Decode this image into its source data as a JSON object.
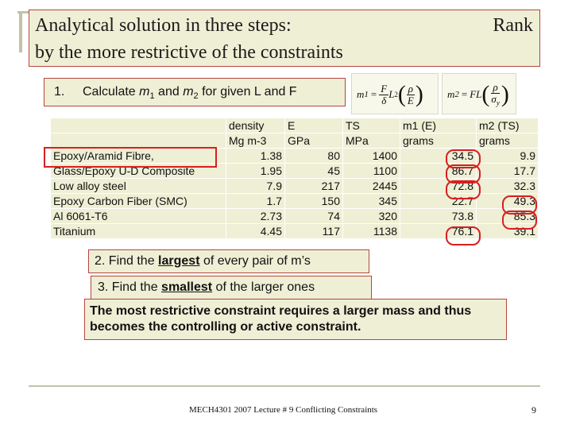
{
  "title": {
    "line1": "Analytical solution in three steps:",
    "line2": "by the more restrictive of the constraints",
    "rank": "Rank"
  },
  "step1": {
    "number": "1.",
    "text_before": "Calculate ",
    "m": "m",
    "sub1": "1",
    "and": " and ",
    "sub2": "2",
    "text_after": " for given L and F"
  },
  "formulas": {
    "m1": {
      "lhs": "m",
      "sub": "1",
      "eq": "=",
      "f_num": "F",
      "f_den": "δ",
      "l2": "L",
      "exp": "2",
      "r_num": "ρ",
      "r_den": "E"
    },
    "m2": {
      "lhs": "m",
      "sub": "2",
      "eq": "=",
      "fl": "FL",
      "r_num": "ρ",
      "r_den": "σ",
      "r_den_sub": "y"
    }
  },
  "table": {
    "header1": [
      "",
      "density",
      "E",
      "TS",
      "m1 (E)",
      "m2 (TS)"
    ],
    "header2": [
      "",
      "Mg m-3",
      "GPa",
      "MPa",
      "grams",
      "grams"
    ],
    "rows": [
      [
        "Epoxy/Aramid Fibre,",
        "1.38",
        "80",
        "1400",
        "34.5",
        "9.9"
      ],
      [
        "Glass/Epoxy U-D Composite",
        "1.95",
        "45",
        "1100",
        "86.7",
        "17.7"
      ],
      [
        "Low alloy steel",
        "7.9",
        "217",
        "2445",
        "72.8",
        "32.3"
      ],
      [
        "Epoxy Carbon Fiber (SMC)",
        "1.7",
        "150",
        "345",
        "22.7",
        "49.3"
      ],
      [
        "Al 6061-T6",
        "2.73",
        "74",
        "320",
        "73.8",
        "85.3"
      ],
      [
        "Titanium",
        "4.45",
        "117",
        "1138",
        "76.1",
        "39.1"
      ]
    ]
  },
  "step2": {
    "prefix": "2. Find the ",
    "emph": "largest",
    "suffix": " of every pair of m’s"
  },
  "step3": {
    "prefix": "3. Find the ",
    "emph": "smallest",
    "suffix": " of the larger ones"
  },
  "conclusion": "The most restrictive constraint requires a larger mass and thus becomes the controlling or active constraint.",
  "footer": {
    "text": "MECH4301 2007 Lecture # 9 Conflicting Constraints",
    "page": "9"
  },
  "colors": {
    "box_fill": "#efefd6",
    "box_border": "#b5463c",
    "highlight": "#d81f1f",
    "rule": "#c2c2a6"
  }
}
